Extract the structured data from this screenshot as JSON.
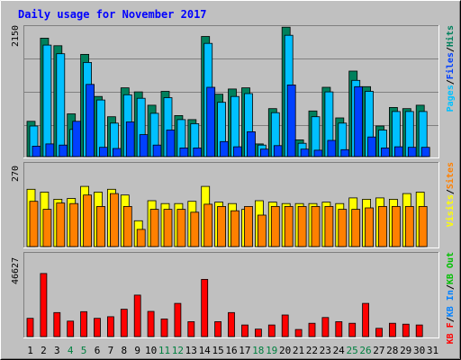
{
  "title": "Daily usage for November 2017",
  "colors": {
    "background": "#c0c0c0",
    "plot_bg": "#c0c0c0",
    "title": "#0000ff",
    "hits": "#00805c",
    "files": "#00c0ff",
    "pages": "#0040ff",
    "visits": "#ffff00",
    "sites": "#ff8000",
    "kbytes": "#ff0000",
    "kb_in": "#0080ff",
    "kb_out": "#00c000"
  },
  "chart_data": [
    {
      "type": "bar",
      "panel": "top",
      "scale_label": "2150",
      "ymax": 2150,
      "legend": [
        {
          "text": "Pages",
          "color": "#00c0ff"
        },
        {
          "text": "/",
          "color": "#000000"
        },
        {
          "text": "Files",
          "color": "#0040ff"
        },
        {
          "text": "/",
          "color": "#000000"
        },
        {
          "text": "Hits",
          "color": "#00805c"
        }
      ],
      "series": [
        {
          "name": "Hits",
          "values": [
            610,
            2050,
            1920,
            740,
            1770,
            1040,
            690,
            1190,
            1120,
            890,
            1130,
            710,
            640,
            2080,
            1080,
            1170,
            1190,
            220,
            830,
            2240,
            290,
            790,
            1200,
            670,
            1480,
            1210,
            530,
            850,
            830,
            890
          ]
        },
        {
          "name": "Files",
          "values": [
            530,
            1930,
            1780,
            470,
            1630,
            980,
            580,
            1070,
            1010,
            750,
            1020,
            640,
            570,
            1960,
            940,
            1040,
            1090,
            200,
            760,
            2100,
            230,
            690,
            1120,
            580,
            1320,
            1130,
            460,
            780,
            780,
            780
          ]
        },
        {
          "name": "Pages",
          "values": [
            180,
            220,
            200,
            610,
            1250,
            160,
            140,
            600,
            380,
            200,
            460,
            150,
            150,
            1200,
            260,
            170,
            430,
            130,
            190,
            1240,
            130,
            110,
            280,
            120,
            1210,
            340,
            150,
            170,
            160,
            160
          ]
        }
      ]
    },
    {
      "type": "bar",
      "panel": "middle",
      "scale_label": "270",
      "ymax": 270,
      "legend": [
        {
          "text": "Visits",
          "color": "#ffff00"
        },
        {
          "text": "/",
          "color": "#000000"
        },
        {
          "text": "Sites",
          "color": "#ff8000"
        }
      ],
      "series": [
        {
          "name": "Visits",
          "values": [
            200,
            190,
            165,
            168,
            210,
            190,
            200,
            180,
            90,
            160,
            150,
            150,
            158,
            210,
            155,
            150,
            130,
            160,
            155,
            150,
            150,
            150,
            155,
            150,
            170,
            165,
            170,
            165,
            185,
            190
          ]
        },
        {
          "name": "Sites",
          "values": [
            158,
            130,
            152,
            150,
            180,
            140,
            185,
            140,
            60,
            130,
            130,
            130,
            120,
            148,
            140,
            125,
            140,
            110,
            140,
            140,
            140,
            140,
            140,
            130,
            130,
            135,
            140,
            140,
            140,
            140
          ]
        }
      ]
    },
    {
      "type": "bar",
      "panel": "bottom",
      "scale_label": "46627",
      "ymax": 46627,
      "legend": [
        {
          "text": "KB F",
          "color": "#ff0000"
        },
        {
          "text": "/",
          "color": "#000000"
        },
        {
          "text": "KB In",
          "color": "#0080ff"
        },
        {
          "text": "/",
          "color": "#000000"
        },
        {
          "text": "KB Out",
          "color": "#00c000"
        }
      ],
      "series": [
        {
          "name": "KB F",
          "values": [
            11000,
            38000,
            14500,
            9300,
            15000,
            11000,
            12000,
            16500,
            25000,
            15200,
            10600,
            20000,
            9000,
            34500,
            9000,
            14500,
            7000,
            4500,
            7000,
            13000,
            4300,
            8000,
            11500,
            9000,
            8000,
            20000,
            5000,
            8000,
            7500,
            7000
          ]
        }
      ]
    }
  ],
  "x_labels": [
    {
      "text": "1",
      "weekend": false
    },
    {
      "text": "2",
      "weekend": false
    },
    {
      "text": "3",
      "weekend": false
    },
    {
      "text": "4",
      "weekend": true
    },
    {
      "text": "5",
      "weekend": true
    },
    {
      "text": "6",
      "weekend": false
    },
    {
      "text": "7",
      "weekend": false
    },
    {
      "text": "8",
      "weekend": false
    },
    {
      "text": "9",
      "weekend": false
    },
    {
      "text": "10",
      "weekend": false
    },
    {
      "text": "11",
      "weekend": true
    },
    {
      "text": "12",
      "weekend": true
    },
    {
      "text": "13",
      "weekend": false
    },
    {
      "text": "14",
      "weekend": false
    },
    {
      "text": "15",
      "weekend": false
    },
    {
      "text": "16",
      "weekend": false
    },
    {
      "text": "17",
      "weekend": false
    },
    {
      "text": "18",
      "weekend": true
    },
    {
      "text": "19",
      "weekend": true
    },
    {
      "text": "20",
      "weekend": false
    },
    {
      "text": "21",
      "weekend": false
    },
    {
      "text": "22",
      "weekend": false
    },
    {
      "text": "23",
      "weekend": false
    },
    {
      "text": "24",
      "weekend": false
    },
    {
      "text": "25",
      "weekend": true
    },
    {
      "text": "26",
      "weekend": true
    },
    {
      "text": "27",
      "weekend": false
    },
    {
      "text": "28",
      "weekend": false
    },
    {
      "text": "29",
      "weekend": false
    },
    {
      "text": "30",
      "weekend": false
    },
    {
      "text": "31",
      "weekend": false
    }
  ]
}
